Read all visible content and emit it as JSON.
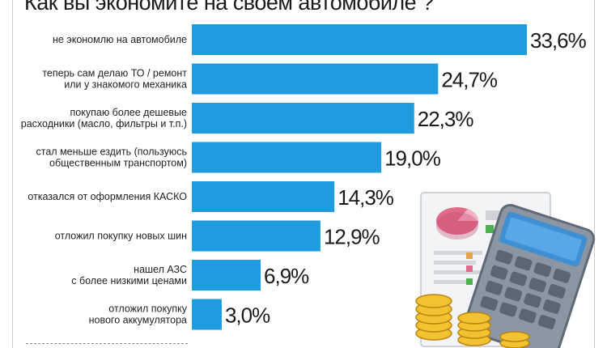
{
  "title": "Как вы экономите на своем автомобиле ?",
  "colors": {
    "bar": "#1f9be0",
    "text": "#1a1a1a",
    "background": "#ffffff"
  },
  "illustration": "calculator-coins-report-icon",
  "chart_data": {
    "type": "bar",
    "orientation": "horizontal",
    "title": "Как вы экономите на своем автомобиле ?",
    "xlabel": "",
    "ylabel": "",
    "xlim": [
      0,
      33.6
    ],
    "grid": false,
    "categories": [
      [
        "не экономлю на автомобиле"
      ],
      [
        "теперь сам делаю ТО / ремонт",
        "или у знакомого механика"
      ],
      [
        "покупаю более дешевые",
        "расходники (масло, фильтры и т.п.)"
      ],
      [
        "стал меньше ездить (пользуюсь",
        "общественным транспортом)"
      ],
      [
        "отказался от оформления КАСКО"
      ],
      [
        "отложил покупку новых шин"
      ],
      [
        "нашел АЗС",
        "с более низкими ценами"
      ],
      [
        "отложил покупку",
        "нового аккумулятора"
      ]
    ],
    "values": [
      33.6,
      24.7,
      22.3,
      19.0,
      14.3,
      12.9,
      6.9,
      3.0
    ],
    "value_labels": [
      "33,6%",
      "24,7%",
      "22,3%",
      "19,0%",
      "14,3%",
      "12,9%",
      "6,9%",
      "3,0%"
    ]
  }
}
